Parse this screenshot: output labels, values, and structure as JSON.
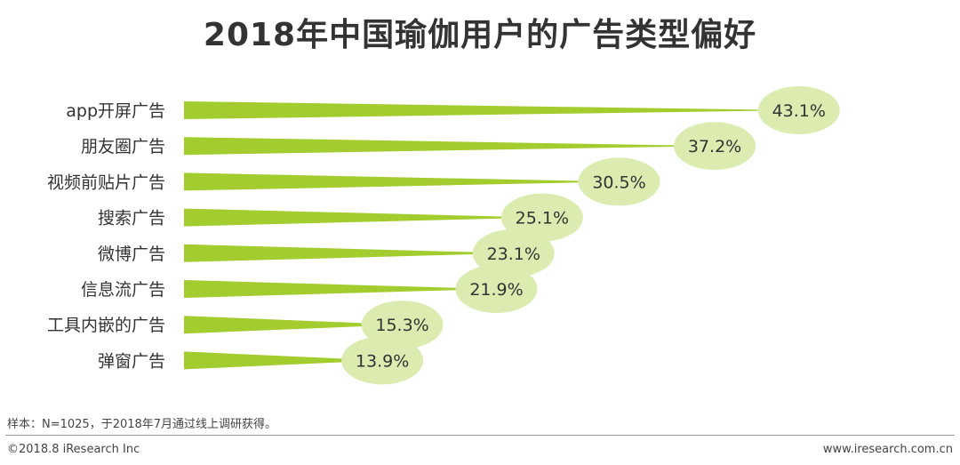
{
  "title": "2018年中国瑜伽用户的广告类型偏好",
  "note": "样本：N=1025，于2018年7月通过线上调研获得。",
  "footer": {
    "copyright": "©2018.8 iResearch Inc",
    "website": "www.iresearch.com.cn"
  },
  "colors": {
    "bar": "#a3cc2e",
    "label_bubble": "#dcebb0"
  },
  "chart_data": {
    "type": "bar",
    "orientation": "horizontal",
    "categories": [
      "app开屏广告",
      "朋友圈广告",
      "视频前贴片广告",
      "搜索广告",
      "微博广告",
      "信息流广告",
      "工具内嵌的广告",
      "弹窗广告"
    ],
    "values": [
      43.1,
      37.2,
      30.5,
      25.1,
      23.1,
      21.9,
      15.3,
      13.9
    ],
    "labels": [
      "43.1%",
      "37.2%",
      "30.5%",
      "25.1%",
      "23.1%",
      "21.9%",
      "15.3%",
      "13.9%"
    ],
    "unit": "%"
  }
}
